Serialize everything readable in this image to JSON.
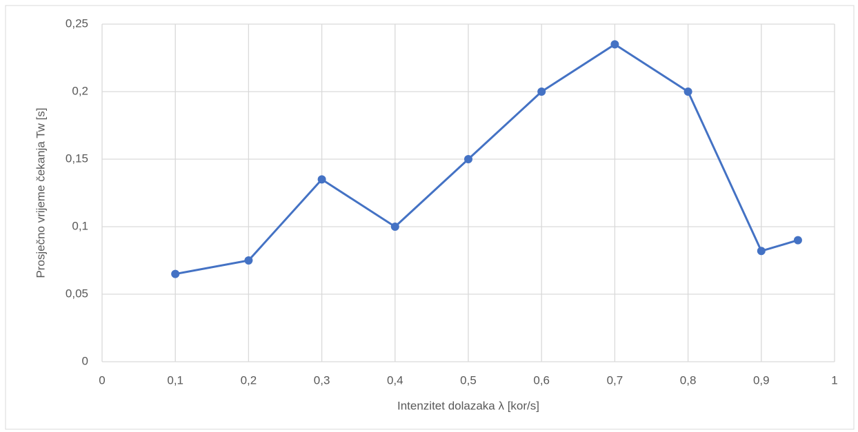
{
  "chart_data": {
    "type": "line",
    "x": [
      0.1,
      0.2,
      0.3,
      0.4,
      0.5,
      0.6,
      0.7,
      0.8,
      0.9,
      0.95
    ],
    "series": [
      {
        "color": "#4472c4",
        "values": [
          0.065,
          0.075,
          0.135,
          0.1,
          0.15,
          0.2,
          0.235,
          0.2,
          0.082,
          0.09
        ]
      }
    ],
    "xlabel": "Intenzitet dolazaka λ [kor/s]",
    "ylabel": "Prosječno vrijeme čekanja Tw [s]",
    "xlim": [
      0,
      1
    ],
    "xticks": [
      0,
      {
        "value": 0.1,
        "label": "0,1"
      },
      {
        "value": 0.2,
        "label": "0,2"
      },
      {
        "value": 0.3,
        "label": "0,3"
      },
      {
        "value": 0.4,
        "label": "0,4"
      },
      {
        "value": 0.5,
        "label": "0,5"
      },
      {
        "value": 0.6,
        "label": "0,6"
      },
      {
        "value": 0.7,
        "label": "0,7"
      },
      {
        "value": 0.8,
        "label": "0,8"
      },
      {
        "value": 0.9,
        "label": "0,9"
      },
      1
    ],
    "ylim": [
      0,
      0.25
    ],
    "yticks": [
      0,
      {
        "value": 0.05,
        "label": "0,05"
      },
      {
        "value": 0.1,
        "label": "0,1"
      },
      {
        "value": 0.15,
        "label": "0,15"
      },
      {
        "value": 0.2,
        "label": "0,2"
      },
      {
        "value": 0.25,
        "label": "0,25"
      }
    ],
    "grid": true
  }
}
